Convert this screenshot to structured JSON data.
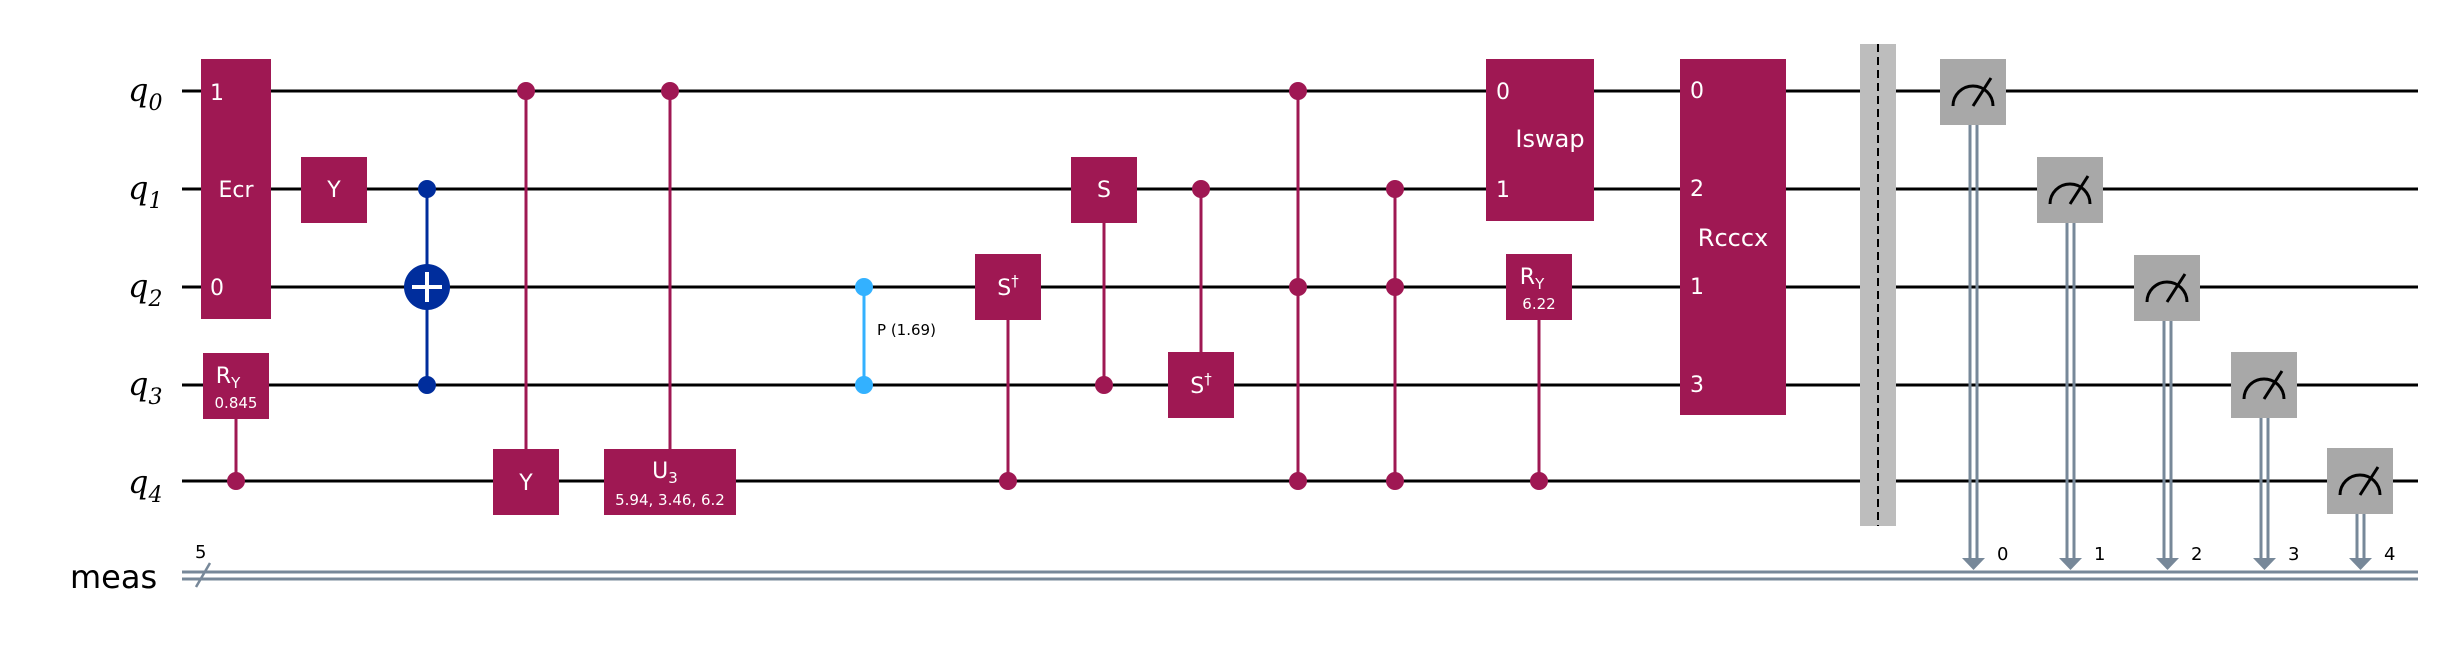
{
  "circuit": {
    "qubit_labels": [
      {
        "base": "q",
        "sub": "0"
      },
      {
        "base": "q",
        "sub": "1"
      },
      {
        "base": "q",
        "sub": "2"
      },
      {
        "base": "q",
        "sub": "3"
      },
      {
        "base": "q",
        "sub": "4"
      }
    ],
    "classical_label": "meas",
    "classical_width": "5",
    "measurement_bits": [
      "0",
      "1",
      "2",
      "3",
      "4"
    ],
    "gates": {
      "ecr": {
        "label": "Ecr",
        "pin_top": "1",
        "pin_bottom": "0"
      },
      "ry_q3": {
        "label": "R",
        "sub": "Y",
        "param": "0.845"
      },
      "y_q1": {
        "label": "Y"
      },
      "y_q4": {
        "label": "Y"
      },
      "u3": {
        "label": "U",
        "sub": "3",
        "param": "5.94, 3.46, 6.2"
      },
      "phase": {
        "label": "P (1.69)"
      },
      "sdg_q2": {
        "label": "S",
        "sup": "†"
      },
      "s_q1": {
        "label": "S"
      },
      "sdg_q3": {
        "label": "S",
        "sup": "†"
      },
      "iswap": {
        "label": "Iswap",
        "pin_top": "0",
        "pin_bottom": "1"
      },
      "ry_q2": {
        "label": "R",
        "sub": "Y",
        "param": "6.22"
      },
      "rcccx": {
        "label": "Rcccx",
        "pins": [
          "0",
          "2",
          "1",
          "3"
        ]
      }
    },
    "colors": {
      "gate": "#9f1853",
      "cnot": "#002d9c",
      "phase": "#33b1ff",
      "measure": "#a8a8a8",
      "barrier": "#bdbdbd",
      "classical": "#778899",
      "wire": "#000000"
    }
  }
}
